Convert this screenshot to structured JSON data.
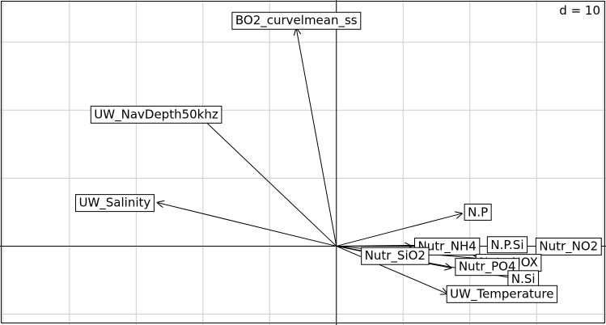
{
  "chart_data": {
    "type": "biplot-arrows",
    "scale_label": "d = 10",
    "grid": true,
    "xlim": [
      -25.2,
      20.2
    ],
    "ylim": [
      -5.8,
      18.1
    ],
    "arrows": [
      {
        "name": "BO2_curvelmean_ss",
        "x": -3.0,
        "y": 16.0,
        "tx": -3.0,
        "ty": 16.6
      },
      {
        "name": "UW_NavDepth50khz",
        "x": -10.6,
        "y": 9.9,
        "tx": -13.5,
        "ty": 9.7
      },
      {
        "name": "UW_Salinity",
        "x": -13.4,
        "y": 3.2,
        "tx": -16.6,
        "ty": 3.2
      },
      {
        "name": "N.P",
        "x": 9.4,
        "y": 2.4,
        "tx": 10.6,
        "ty": 2.5
      },
      {
        "name": "Nutr_NH4",
        "x": 5.6,
        "y": 0.0,
        "tx": 8.3,
        "ty": 0.0
      },
      {
        "name": "N.P.Si",
        "x": 10.2,
        "y": 0.1,
        "tx": 12.8,
        "ty": 0.1
      },
      {
        "name": "Nutr_NO2",
        "x": 12.8,
        "y": 0.0,
        "tx": 17.4,
        "ty": 0.0
      },
      {
        "name": "Nutr_SiO2",
        "x": 4.0,
        "y": -0.8,
        "tx": 4.4,
        "ty": -0.7
      },
      {
        "name": "Nutr_NOX",
        "x": 10.6,
        "y": -0.9,
        "tx": 12.9,
        "ty": -1.2
      },
      {
        "name": "Nutr_PO4",
        "x": 8.6,
        "y": -1.6,
        "tx": 11.3,
        "ty": -1.5
      },
      {
        "name": "N.Si",
        "x": 14.0,
        "y": -2.5,
        "tx": 14.0,
        "ty": -2.4
      },
      {
        "name": "UW_Temperature",
        "x": 8.3,
        "y": -3.5,
        "tx": 12.4,
        "ty": -3.5
      }
    ]
  }
}
